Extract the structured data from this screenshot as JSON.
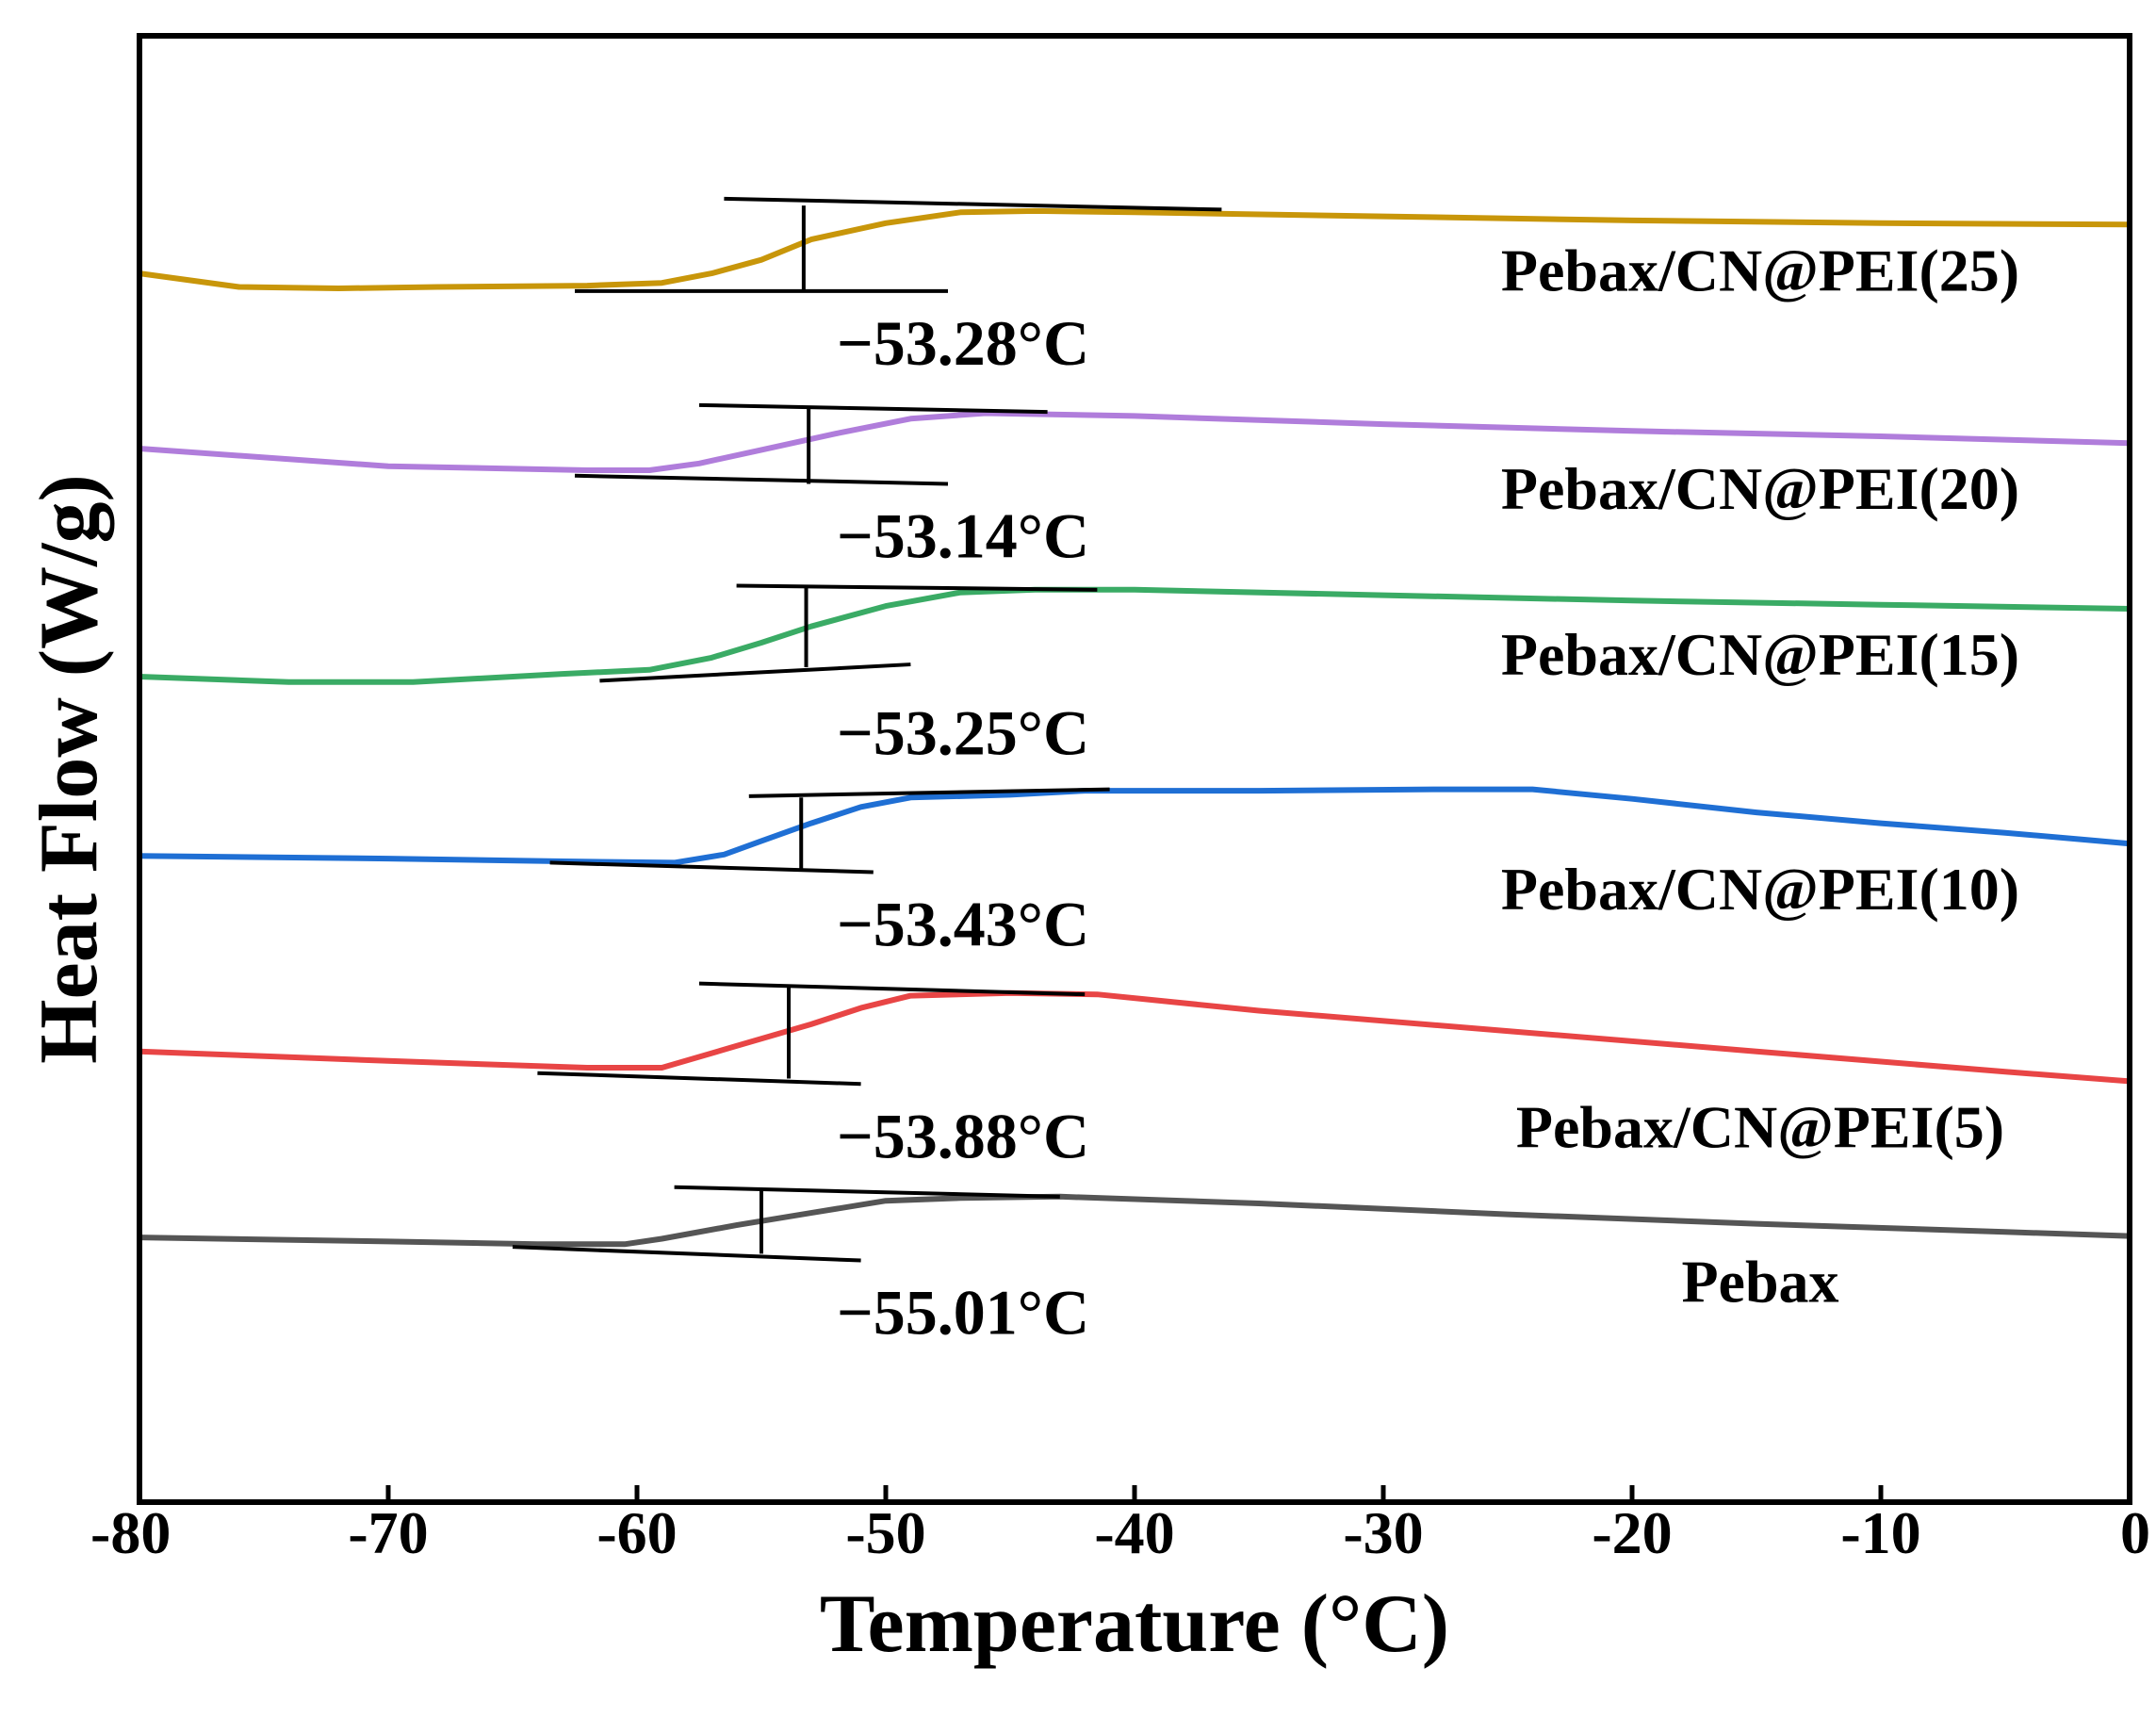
{
  "chart_data": {
    "type": "line",
    "title": "",
    "xlabel": "Temperature (°C)",
    "ylabel": "Heat Flow (W/g)",
    "xlim": [
      -80,
      0
    ],
    "xticks": [
      -80,
      -70,
      -60,
      -50,
      -40,
      -30,
      -20,
      -10,
      0
    ],
    "xtick_labels": [
      "-80",
      "-70",
      "-60",
      "-50",
      "-40",
      "-30",
      "-20",
      "-10",
      "0"
    ],
    "y_ticks_shown": false,
    "grid": false,
    "y_units": "offset curves (relative)",
    "series": [
      {
        "name": "Pebax/CN@PEI(25)",
        "color": "#c8960a",
        "label": "Pebax/CN@PEI(25)",
        "tg_label": "−53.28°C",
        "tg": -53.28,
        "points": [
          [
            -80,
            9.05
          ],
          [
            -76,
            8.95
          ],
          [
            -72,
            8.94
          ],
          [
            -68,
            8.95
          ],
          [
            -62,
            8.96
          ],
          [
            -59,
            8.98
          ],
          [
            -57,
            9.05
          ],
          [
            -55,
            9.15
          ],
          [
            -53,
            9.3
          ],
          [
            -50,
            9.42
          ],
          [
            -47,
            9.5
          ],
          [
            -44,
            9.51
          ],
          [
            -40,
            9.5
          ],
          [
            -30,
            9.47
          ],
          [
            -20,
            9.44
          ],
          [
            -10,
            9.42
          ],
          [
            0,
            9.41
          ]
        ],
        "onset_tangent": [
          [
            -62.5,
            8.92
          ],
          [
            -47.5,
            8.92
          ]
        ],
        "end_tangent": [
          [
            -56.5,
            9.6
          ],
          [
            -36.5,
            9.52
          ]
        ],
        "tg_marker": [
          [
            -53.3,
            8.92
          ],
          [
            -53.3,
            9.55
          ]
        ]
      },
      {
        "name": "Pebax/CN@PEI(20)",
        "color": "#b07ddb",
        "label": "Pebax/CN@PEI(20)",
        "tg_label": "−53.14°C",
        "tg": -53.14,
        "points": [
          [
            -80,
            7.76
          ],
          [
            -70,
            7.63
          ],
          [
            -62,
            7.6
          ],
          [
            -59.5,
            7.6
          ],
          [
            -57.5,
            7.65
          ],
          [
            -55,
            7.75
          ],
          [
            -52,
            7.87
          ],
          [
            -49,
            7.98
          ],
          [
            -46,
            8.02
          ],
          [
            -40,
            8.0
          ],
          [
            -30,
            7.94
          ],
          [
            -20,
            7.89
          ],
          [
            -10,
            7.85
          ],
          [
            0,
            7.8
          ]
        ],
        "onset_tangent": [
          [
            -62.5,
            7.56
          ],
          [
            -47.5,
            7.5
          ]
        ],
        "end_tangent": [
          [
            -57.5,
            8.08
          ],
          [
            -43.5,
            8.03
          ]
        ],
        "tg_marker": [
          [
            -53.1,
            7.5
          ],
          [
            -53.1,
            8.06
          ]
        ]
      },
      {
        "name": "Pebax/CN@PEI(15)",
        "color": "#3aab65",
        "label": "Pebax/CN@PEI(15)",
        "tg_label": "−53.25°C",
        "tg": -53.25,
        "points": [
          [
            -80,
            6.08
          ],
          [
            -74,
            6.04
          ],
          [
            -69,
            6.04
          ],
          [
            -63,
            6.1
          ],
          [
            -59.5,
            6.13
          ],
          [
            -57,
            6.22
          ],
          [
            -55,
            6.33
          ],
          [
            -53,
            6.45
          ],
          [
            -50,
            6.6
          ],
          [
            -47,
            6.7
          ],
          [
            -44,
            6.72
          ],
          [
            -40,
            6.72
          ],
          [
            -30,
            6.68
          ],
          [
            -20,
            6.64
          ],
          [
            -10,
            6.61
          ],
          [
            0,
            6.58
          ]
        ],
        "onset_tangent": [
          [
            -61.5,
            6.05
          ],
          [
            -49,
            6.17
          ]
        ],
        "end_tangent": [
          [
            -56,
            6.75
          ],
          [
            -41.5,
            6.72
          ]
        ],
        "tg_marker": [
          [
            -53.2,
            6.15
          ],
          [
            -53.2,
            6.74
          ]
        ]
      },
      {
        "name": "Pebax/CN@PEI(10)",
        "color": "#1f6fd4",
        "label": "Pebax/CN@PEI(10)",
        "tg_label": "−53.43°C",
        "tg": -53.43,
        "points": [
          [
            -80,
            4.76
          ],
          [
            -70,
            4.74
          ],
          [
            -63,
            4.72
          ],
          [
            -58.5,
            4.71
          ],
          [
            -56.5,
            4.77
          ],
          [
            -55,
            4.87
          ],
          [
            -53,
            5.0
          ],
          [
            -51,
            5.12
          ],
          [
            -49,
            5.19
          ],
          [
            -45,
            5.21
          ],
          [
            -42,
            5.24
          ],
          [
            -35,
            5.24
          ],
          [
            -28,
            5.25
          ],
          [
            -24,
            5.25
          ],
          [
            -20,
            5.18
          ],
          [
            -15,
            5.08
          ],
          [
            -10,
            5.0
          ],
          [
            -5,
            4.93
          ],
          [
            0,
            4.85
          ]
        ],
        "onset_tangent": [
          [
            -63.5,
            4.71
          ],
          [
            -50.5,
            4.64
          ]
        ],
        "end_tangent": [
          [
            -55.5,
            5.2
          ],
          [
            -41,
            5.25
          ]
        ],
        "tg_marker": [
          [
            -53.4,
            4.65
          ],
          [
            -53.4,
            5.19
          ]
        ]
      },
      {
        "name": "Pebax/CN@PEI(5)",
        "color": "#e84545",
        "label": "Pebax/CN@PEI(5)",
        "tg_label": "−53.88°C",
        "tg": -53.88,
        "points": [
          [
            -80,
            3.32
          ],
          [
            -70,
            3.25
          ],
          [
            -62,
            3.2
          ],
          [
            -59,
            3.2
          ],
          [
            -56,
            3.36
          ],
          [
            -53,
            3.52
          ],
          [
            -51,
            3.64
          ],
          [
            -49,
            3.73
          ],
          [
            -45,
            3.75
          ],
          [
            -41.5,
            3.74
          ],
          [
            -35,
            3.62
          ],
          [
            -25,
            3.47
          ],
          [
            -15,
            3.32
          ],
          [
            -5,
            3.17
          ],
          [
            0,
            3.1
          ]
        ],
        "onset_tangent": [
          [
            -64,
            3.16
          ],
          [
            -51,
            3.08
          ]
        ],
        "end_tangent": [
          [
            -57.5,
            3.82
          ],
          [
            -42,
            3.74
          ]
        ],
        "tg_marker": [
          [
            -53.9,
            3.12
          ],
          [
            -53.9,
            3.8
          ]
        ]
      },
      {
        "name": "Pebax",
        "color": "#555555",
        "label": "Pebax",
        "tg_label": "−55.01°C",
        "tg": -55.01,
        "points": [
          [
            -80,
            1.95
          ],
          [
            -70,
            1.92
          ],
          [
            -64,
            1.9
          ],
          [
            -60.5,
            1.9
          ],
          [
            -59,
            1.94
          ],
          [
            -56,
            2.04
          ],
          [
            -53,
            2.13
          ],
          [
            -50,
            2.22
          ],
          [
            -47,
            2.24
          ],
          [
            -43,
            2.25
          ],
          [
            -35,
            2.2
          ],
          [
            -25,
            2.12
          ],
          [
            -15,
            2.05
          ],
          [
            -5,
            1.99
          ],
          [
            0,
            1.96
          ]
        ],
        "onset_tangent": [
          [
            -65,
            1.88
          ],
          [
            -51,
            1.78
          ]
        ],
        "end_tangent": [
          [
            -58.5,
            2.32
          ],
          [
            -43,
            2.25
          ]
        ],
        "tg_marker": [
          [
            -55.0,
            1.83
          ],
          [
            -55.0,
            2.3
          ]
        ]
      }
    ]
  }
}
